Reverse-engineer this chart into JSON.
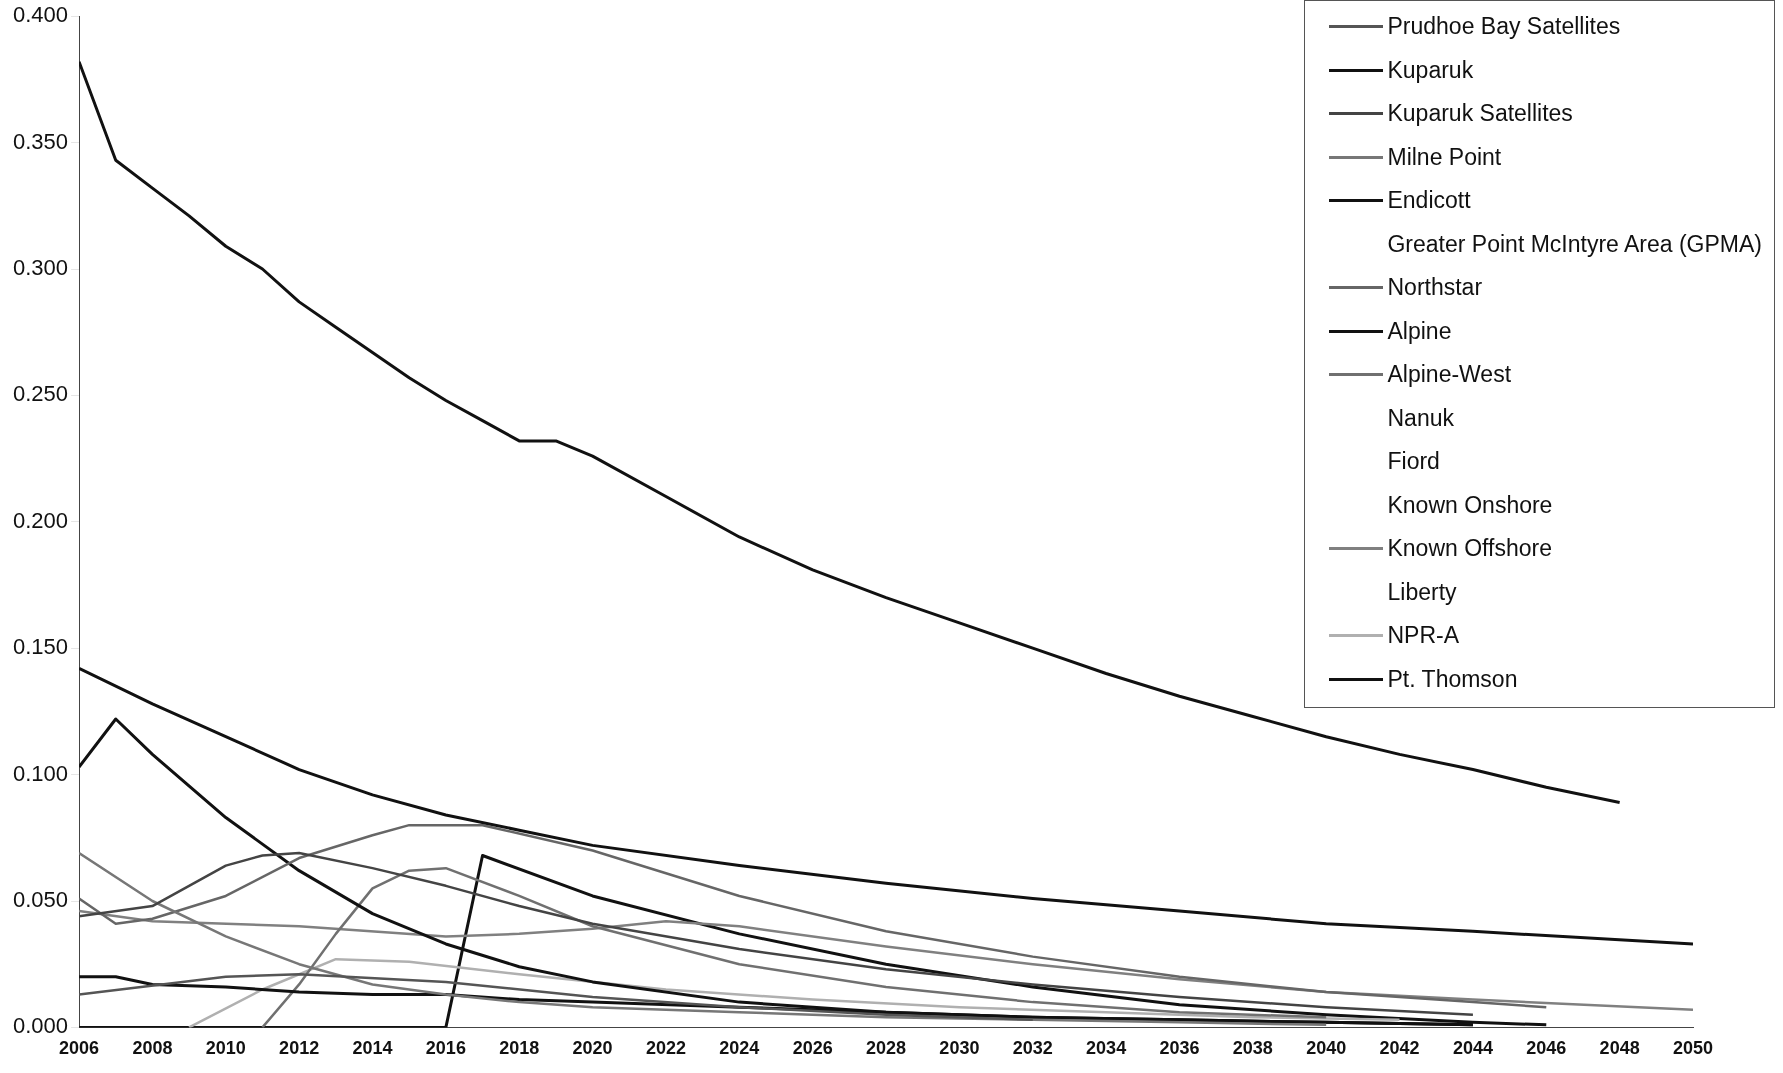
{
  "chart_data": {
    "type": "line",
    "xlim": [
      2006,
      2050
    ],
    "ylim": [
      0,
      0.4
    ],
    "xticks": [
      2006,
      2008,
      2010,
      2012,
      2014,
      2016,
      2018,
      2020,
      2022,
      2024,
      2026,
      2028,
      2030,
      2032,
      2034,
      2036,
      2038,
      2040,
      2042,
      2044,
      2046,
      2048,
      2050
    ],
    "yticks": [
      {
        "value": 0,
        "label": "0.000"
      },
      {
        "value": 0.05,
        "label": "0.050"
      },
      {
        "value": 0.1,
        "label": "0.100"
      },
      {
        "value": 0.15,
        "label": "0.150"
      },
      {
        "value": 0.2,
        "label": "0.200"
      },
      {
        "value": 0.25,
        "label": "0.250"
      },
      {
        "value": 0.3,
        "label": "0.300"
      },
      {
        "value": 0.35,
        "label": "0.350"
      },
      {
        "value": 0.4,
        "label": "0.400"
      }
    ],
    "legend": "top right",
    "marker": "none",
    "line_style": "solid",
    "series": [
      {
        "color": "#111111",
        "x": [
          2006,
          2007,
          2008,
          2009,
          2010,
          2011,
          2012,
          2013,
          2014,
          2015,
          2016,
          2017,
          2018,
          2019,
          2020,
          2022,
          2024,
          2026,
          2028,
          2030,
          2032,
          2034,
          2036,
          2038,
          2040,
          2042,
          2044,
          2046,
          2048
        ],
        "values": [
          0.382,
          0.343,
          0.332,
          0.321,
          0.309,
          0.3,
          0.287,
          0.277,
          0.267,
          0.257,
          0.248,
          0.24,
          0.232,
          0.232,
          0.226,
          0.21,
          0.194,
          0.181,
          0.17,
          0.16,
          0.15,
          0.14,
          0.131,
          0.123,
          0.115,
          0.108,
          0.102,
          0.095,
          0.089
        ]
      },
      {
        "name": "Prudhoe Bay Satellites",
        "color": "#555555",
        "x": [
          2006,
          2010,
          2012,
          2016,
          2020,
          2024,
          2028,
          2032
        ],
        "values": [
          0.013,
          0.02,
          0.021,
          0.018,
          0.012,
          0.008,
          0.005,
          0.003
        ]
      },
      {
        "name": "Kuparuk",
        "color": "#111111",
        "x": [
          2006,
          2008,
          2010,
          2012,
          2014,
          2016,
          2018,
          2020,
          2024,
          2028,
          2032,
          2036,
          2040,
          2044,
          2050
        ],
        "values": [
          0.142,
          0.128,
          0.115,
          0.102,
          0.092,
          0.084,
          0.078,
          0.072,
          0.064,
          0.057,
          0.051,
          0.046,
          0.041,
          0.038,
          0.033
        ]
      },
      {
        "name": "Kuparuk Satellites",
        "color": "#444444",
        "x": [
          2006,
          2008,
          2010,
          2011,
          2012,
          2014,
          2016,
          2018,
          2020,
          2024,
          2028,
          2032,
          2036,
          2040,
          2044
        ],
        "values": [
          0.044,
          0.048,
          0.064,
          0.068,
          0.069,
          0.063,
          0.056,
          0.048,
          0.041,
          0.031,
          0.023,
          0.017,
          0.012,
          0.008,
          0.005
        ]
      },
      {
        "name": "Milne Point",
        "color": "#777777",
        "x": [
          2006,
          2008,
          2010,
          2012,
          2014,
          2016,
          2018,
          2020,
          2024,
          2028,
          2032,
          2036,
          2040
        ],
        "values": [
          0.069,
          0.05,
          0.036,
          0.025,
          0.017,
          0.013,
          0.01,
          0.008,
          0.006,
          0.004,
          0.003,
          0.002,
          0.001
        ]
      },
      {
        "name": "Endicott",
        "color": "#111111",
        "x": [
          2006,
          2007,
          2008,
          2010,
          2012,
          2014,
          2016,
          2018,
          2020,
          2024,
          2028,
          2032,
          2036,
          2040,
          2044
        ],
        "values": [
          0.02,
          0.02,
          0.017,
          0.016,
          0.014,
          0.013,
          0.013,
          0.011,
          0.01,
          0.008,
          0.006,
          0.004,
          0.003,
          0.002,
          0.001
        ]
      },
      {
        "name": "Greater Point McIntyre Area (GPMA)"
      },
      {
        "name": "Northstar",
        "color": "#666666",
        "x": [
          2006,
          2007,
          2008,
          2010,
          2012,
          2014,
          2015,
          2017,
          2020,
          2024,
          2028,
          2032,
          2036,
          2040,
          2044,
          2046
        ],
        "values": [
          0.051,
          0.041,
          0.043,
          0.052,
          0.067,
          0.076,
          0.08,
          0.08,
          0.07,
          0.052,
          0.038,
          0.028,
          0.02,
          0.014,
          0.01,
          0.008
        ]
      },
      {
        "name": "Alpine",
        "color": "#111111",
        "x": [
          2006,
          2007,
          2008,
          2010,
          2012,
          2014,
          2016,
          2018,
          2020,
          2024,
          2028,
          2032,
          2036,
          2040,
          2044
        ],
        "values": [
          0.103,
          0.122,
          0.108,
          0.083,
          0.062,
          0.045,
          0.033,
          0.024,
          0.018,
          0.01,
          0.006,
          0.004,
          0.003,
          0.002,
          0.001
        ]
      },
      {
        "name": "Alpine-West",
        "color": "#707070",
        "x": [
          2011,
          2012,
          2013,
          2014,
          2015,
          2016,
          2018,
          2020,
          2024,
          2028,
          2032,
          2036,
          2040
        ],
        "values": [
          0,
          0.017,
          0.037,
          0.055,
          0.062,
          0.063,
          0.052,
          0.04,
          0.025,
          0.016,
          0.01,
          0.006,
          0.004
        ]
      },
      {
        "name": "Nanuk"
      },
      {
        "name": "Fiord"
      },
      {
        "name": "Known Onshore"
      },
      {
        "name": "Known Offshore",
        "color": "#808080",
        "x": [
          2006,
          2008,
          2012,
          2016,
          2018,
          2020,
          2022,
          2024,
          2028,
          2032,
          2036,
          2040,
          2044,
          2050
        ],
        "values": [
          0.046,
          0.042,
          0.04,
          0.036,
          0.037,
          0.039,
          0.042,
          0.04,
          0.032,
          0.025,
          0.019,
          0.014,
          0.011,
          0.007
        ]
      },
      {
        "name": "Liberty"
      },
      {
        "name": "NPR-A",
        "color": "#b0b0b0",
        "x": [
          2009,
          2011,
          2013,
          2015,
          2018,
          2022,
          2026,
          2030,
          2034,
          2038,
          2042
        ],
        "values": [
          0,
          0.015,
          0.027,
          0.026,
          0.021,
          0.015,
          0.011,
          0.008,
          0.006,
          0.004,
          0.003
        ]
      },
      {
        "name": "Pt. Thomson",
        "color": "#111111",
        "x": [
          2006,
          2016,
          2017,
          2020,
          2024,
          2028,
          2032,
          2036,
          2040,
          2044,
          2046
        ],
        "values": [
          0,
          0,
          0.068,
          0.052,
          0.037,
          0.025,
          0.016,
          0.009,
          0.005,
          0.002,
          0.001
        ]
      }
    ]
  }
}
